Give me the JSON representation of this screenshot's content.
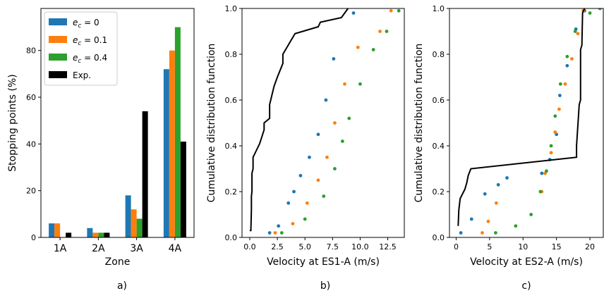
{
  "chart_data": [
    {
      "type": "bar",
      "caption": "a)",
      "xlabel": "Zone",
      "ylabel": "Stopping points (%)",
      "categories": [
        "1A",
        "2A",
        "3A",
        "4A"
      ],
      "ylim": [
        0,
        98
      ],
      "yticks": [
        0,
        20,
        40,
        60,
        80
      ],
      "legend_position": "top-left",
      "series": [
        {
          "name": "e_c = 0",
          "color": "#1f77b4",
          "values": [
            6,
            4,
            18,
            72
          ]
        },
        {
          "name": "e_c = 0.1",
          "color": "#ff7f0e",
          "values": [
            6,
            2,
            12,
            80
          ]
        },
        {
          "name": "e_c = 0.4",
          "color": "#2ca02c",
          "values": [
            0,
            2,
            8,
            90
          ]
        },
        {
          "name": "Exp.",
          "color": "#000000",
          "values": [
            2,
            2,
            54,
            41
          ]
        }
      ]
    },
    {
      "type": "line",
      "caption": "b)",
      "xlabel": "Velocity at ES1-A (m/s)",
      "ylabel": "Cumulative distribution function",
      "xlim": [
        -0.7,
        14.0
      ],
      "ylim": [
        0,
        1.0
      ],
      "xticks": [
        0.0,
        2.5,
        5.0,
        7.5,
        10.0,
        12.5
      ],
      "xtick_labels": [
        "0.0",
        "2.5",
        "5.0",
        "7.5",
        "10.0",
        "12.5"
      ],
      "yticks": [
        0.0,
        0.2,
        0.4,
        0.6,
        0.8,
        1.0
      ],
      "ytick_labels": [
        "0.0",
        "0.2",
        "0.4",
        "0.6",
        "0.8",
        "1.0"
      ],
      "series": [
        {
          "name": "e_c = 0",
          "color": "#1f77b4",
          "style": "dots",
          "x": [
            1.8,
            2.6,
            3.5,
            4.0,
            4.6,
            5.4,
            6.2,
            6.9,
            7.6,
            9.4
          ],
          "y": [
            0.02,
            0.05,
            0.15,
            0.2,
            0.27,
            0.35,
            0.45,
            0.6,
            0.78,
            0.98
          ]
        },
        {
          "name": "e_c = 0.1",
          "color": "#ff7f0e",
          "style": "dots",
          "x": [
            2.3,
            3.9,
            5.2,
            6.2,
            7.0,
            7.7,
            8.6,
            9.8,
            11.8,
            12.8
          ],
          "y": [
            0.02,
            0.06,
            0.15,
            0.25,
            0.35,
            0.5,
            0.67,
            0.83,
            0.9,
            0.99
          ]
        },
        {
          "name": "e_c = 0.4",
          "color": "#2ca02c",
          "style": "dots",
          "x": [
            2.9,
            5.0,
            6.7,
            7.7,
            8.4,
            9.0,
            10.0,
            11.2,
            12.4,
            13.5
          ],
          "y": [
            0.02,
            0.08,
            0.18,
            0.3,
            0.42,
            0.52,
            0.67,
            0.82,
            0.9,
            0.99
          ]
        },
        {
          "name": "Exp.",
          "color": "#000000",
          "style": "line",
          "x": [
            0.0,
            0.1,
            0.15,
            0.15,
            0.2,
            0.2,
            0.3,
            0.3,
            0.6,
            0.9,
            1.3,
            1.3,
            1.8,
            1.8,
            2.2,
            2.5,
            3.0,
            3.0,
            4.1,
            6.2,
            6.4,
            8.3,
            8.6,
            8.9
          ],
          "y": [
            0.03,
            0.03,
            0.12,
            0.18,
            0.2,
            0.28,
            0.3,
            0.35,
            0.38,
            0.41,
            0.47,
            0.5,
            0.52,
            0.58,
            0.66,
            0.7,
            0.76,
            0.8,
            0.89,
            0.92,
            0.94,
            0.96,
            0.98,
            1.0
          ]
        }
      ]
    },
    {
      "type": "line",
      "caption": "c)",
      "xlabel": "Velocity at ES2-A (m/s)",
      "ylabel": "Cumulative distribution function",
      "xlim": [
        -1.0,
        22.0
      ],
      "ylim": [
        0,
        1.0
      ],
      "xticks": [
        0,
        5,
        10,
        15,
        20
      ],
      "xtick_labels": [
        "0",
        "5",
        "10",
        "15",
        "20"
      ],
      "yticks": [
        0.0,
        0.2,
        0.4,
        0.6,
        0.8,
        1.0
      ],
      "ytick_labels": [
        "0.0",
        "0.2",
        "0.4",
        "0.6",
        "0.8",
        "1.0"
      ],
      "series": [
        {
          "name": "e_c = 0",
          "color": "#1f77b4",
          "style": "dots",
          "x": [
            0.7,
            2.3,
            4.3,
            6.3,
            7.6,
            12.8,
            14.0,
            15.0,
            15.5,
            16.6,
            17.9,
            19.2
          ],
          "y": [
            0.02,
            0.08,
            0.19,
            0.23,
            0.26,
            0.28,
            0.34,
            0.45,
            0.62,
            0.75,
            0.91,
            0.99
          ]
        },
        {
          "name": "e_c = 0.1",
          "color": "#ff7f0e",
          "style": "dots",
          "x": [
            3.9,
            4.8,
            6.0,
            12.8,
            13.3,
            14.2,
            14.8,
            15.4,
            16.3,
            17.3,
            18.2,
            19.0
          ],
          "y": [
            0.02,
            0.07,
            0.15,
            0.2,
            0.28,
            0.37,
            0.46,
            0.56,
            0.67,
            0.78,
            0.89,
            0.99
          ]
        },
        {
          "name": "e_c = 0.4",
          "color": "#2ca02c",
          "style": "dots",
          "x": [
            5.9,
            8.9,
            11.2,
            12.6,
            13.5,
            14.2,
            14.8,
            15.6,
            16.6,
            17.8,
            20.0,
            21.5
          ],
          "y": [
            0.02,
            0.05,
            0.1,
            0.2,
            0.29,
            0.4,
            0.53,
            0.67,
            0.79,
            0.9,
            0.98,
            1.0
          ]
        },
        {
          "name": "Exp.",
          "color": "#000000",
          "style": "line",
          "x": [
            0.3,
            0.4,
            0.6,
            1.3,
            1.6,
            1.8,
            2.2,
            18.0,
            18.0,
            18.4,
            18.6,
            18.6,
            18.8,
            18.9,
            19.2
          ],
          "y": [
            0.05,
            0.12,
            0.17,
            0.21,
            0.24,
            0.27,
            0.3,
            0.35,
            0.4,
            0.58,
            0.6,
            0.82,
            0.84,
            0.98,
            1.0
          ]
        }
      ]
    }
  ]
}
